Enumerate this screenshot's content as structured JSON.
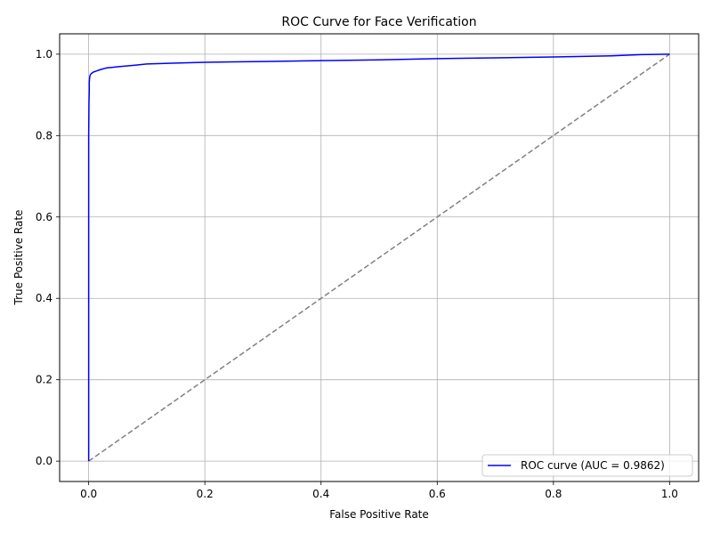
{
  "chart_data": {
    "type": "line",
    "title": "ROC Curve for Face Verification",
    "xlabel": "False Positive Rate",
    "ylabel": "True Positive Rate",
    "xlim": [
      -0.05,
      1.05
    ],
    "ylim": [
      -0.05,
      1.05
    ],
    "xticks": [
      0.0,
      0.2,
      0.4,
      0.6,
      0.8,
      1.0
    ],
    "yticks": [
      0.0,
      0.2,
      0.4,
      0.6,
      0.8,
      1.0
    ],
    "xtick_labels": [
      "0.0",
      "0.2",
      "0.4",
      "0.6",
      "0.8",
      "1.0"
    ],
    "ytick_labels": [
      "0.0",
      "0.2",
      "0.4",
      "0.6",
      "0.8",
      "1.0"
    ],
    "grid": true,
    "legend_position": "lower-right",
    "series": [
      {
        "name": "ROC curve (AUC = 0.9862)",
        "color": "#0000ff",
        "style": "solid",
        "x": [
          0.0,
          0.0,
          0.0005,
          0.001,
          0.001,
          0.0015,
          0.002,
          0.003,
          0.005,
          0.008,
          0.012,
          0.02,
          0.03,
          0.05,
          0.08,
          0.1,
          0.15,
          0.2,
          0.3,
          0.4,
          0.5,
          0.6,
          0.7,
          0.8,
          0.9,
          0.95,
          1.0
        ],
        "y": [
          0.0,
          0.8,
          0.88,
          0.91,
          0.93,
          0.94,
          0.945,
          0.95,
          0.953,
          0.956,
          0.958,
          0.962,
          0.966,
          0.969,
          0.973,
          0.976,
          0.978,
          0.98,
          0.982,
          0.984,
          0.986,
          0.989,
          0.991,
          0.993,
          0.996,
          0.999,
          1.0
        ]
      },
      {
        "name": "",
        "color": "#808080",
        "style": "dashed",
        "x": [
          0.0,
          1.0
        ],
        "y": [
          0.0,
          1.0
        ]
      }
    ]
  }
}
